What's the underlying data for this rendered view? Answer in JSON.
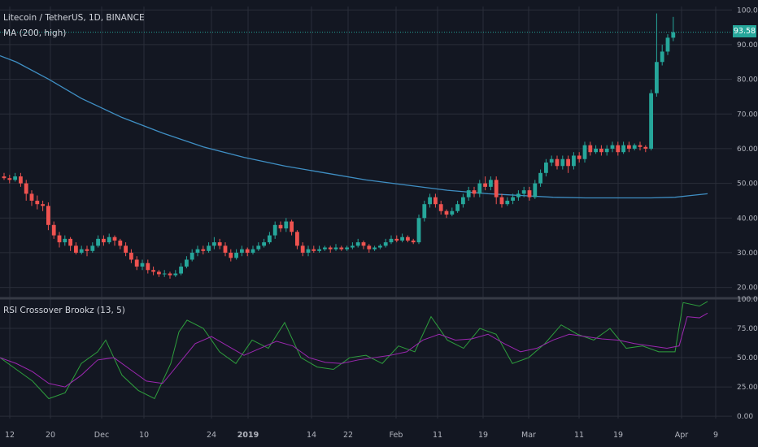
{
  "header": {
    "symbol": "Litecoin / TetherUS, 1D, BINANCE",
    "ma_label": "MA (200, high)",
    "rsi_label": "RSI Crossover Brookz (13, 5)"
  },
  "last_price": "93.58",
  "colors": {
    "background": "#131722",
    "grid": "#2a2e39",
    "up": "#26a69a",
    "down": "#ef5350",
    "ma": "#3f8fc4",
    "rsi_fast": "#2e9e3d",
    "rsi_slow": "#9c27b0",
    "axis_text": "#b2b5be"
  },
  "chart_data": [
    {
      "type": "candlestick",
      "title": "Litecoin / TetherUS, 1D, BINANCE",
      "y_ticks": [
        "100.00",
        "90.00",
        "80.00",
        "70.00",
        "60.00",
        "50.00",
        "40.00",
        "30.00",
        "20.00"
      ],
      "ylim": [
        18.5,
        101
      ],
      "x_ticks": [
        "12",
        "20",
        "Dec",
        "10",
        "24",
        "2019",
        "14",
        "22",
        "Feb",
        "11",
        "19",
        "Mar",
        "11",
        "19",
        "Apr",
        "9"
      ],
      "price_line": 93.58,
      "ma_series": {
        "name": "MA (200, high)",
        "points": [
          [
            0,
            86.8
          ],
          [
            20,
            85.0
          ],
          [
            60,
            80.0
          ],
          [
            100,
            74.5
          ],
          [
            150,
            69.0
          ],
          [
            200,
            64.5
          ],
          [
            250,
            60.5
          ],
          [
            300,
            57.5
          ],
          [
            350,
            55.0
          ],
          [
            400,
            53.0
          ],
          [
            450,
            51.0
          ],
          [
            500,
            49.5
          ],
          [
            550,
            48.0
          ],
          [
            600,
            47.0
          ],
          [
            640,
            46.5
          ],
          [
            680,
            46.0
          ],
          [
            720,
            45.8
          ],
          [
            760,
            45.8
          ],
          [
            800,
            45.8
          ],
          [
            830,
            46.0
          ],
          [
            850,
            46.5
          ],
          [
            870,
            47.0
          ]
        ]
      },
      "candles": [
        [
          52,
          51.5,
          53,
          51
        ],
        [
          51.5,
          51,
          52.5,
          50
        ],
        [
          51,
          52,
          53,
          50.5
        ],
        [
          52,
          50,
          53,
          49
        ],
        [
          50,
          47,
          51,
          45
        ],
        [
          47,
          45,
          48,
          43.5
        ],
        [
          45,
          44,
          46.5,
          42.5
        ],
        [
          44,
          43.5,
          45,
          42
        ],
        [
          43.5,
          38,
          44.5,
          36.5
        ],
        [
          38,
          35,
          39,
          34
        ],
        [
          35,
          33,
          36,
          31.5
        ],
        [
          33,
          34,
          35,
          32
        ],
        [
          34,
          32,
          34.5,
          30.5
        ],
        [
          32,
          30,
          33,
          29.5
        ],
        [
          30,
          31,
          32,
          29.5
        ],
        [
          31,
          30.5,
          32,
          29
        ],
        [
          30.5,
          32,
          33,
          30
        ],
        [
          32,
          34,
          35,
          31.5
        ],
        [
          34,
          33,
          35,
          32
        ],
        [
          33,
          34.5,
          35.5,
          32.5
        ],
        [
          34.5,
          33.5,
          35,
          32
        ],
        [
          33.5,
          32,
          34,
          31
        ],
        [
          32,
          30,
          33,
          29
        ],
        [
          30,
          28,
          31,
          27
        ],
        [
          28,
          26,
          29,
          25
        ],
        [
          26,
          27,
          28,
          25
        ],
        [
          27,
          25,
          28,
          24
        ],
        [
          25,
          24.5,
          26,
          23.5
        ],
        [
          24.5,
          23.8,
          25,
          23
        ],
        [
          23.8,
          24,
          25,
          23
        ],
        [
          24,
          23.5,
          24.5,
          22.5
        ],
        [
          23.5,
          24,
          25,
          23
        ],
        [
          24,
          26,
          27,
          23.5
        ],
        [
          26,
          28,
          29,
          25.5
        ],
        [
          28,
          30,
          31,
          27.5
        ],
        [
          30,
          31,
          32,
          29
        ],
        [
          31,
          30.5,
          32,
          29.5
        ],
        [
          30.5,
          32,
          33,
          30
        ],
        [
          32,
          33,
          34.5,
          31
        ],
        [
          33,
          32,
          34,
          31
        ],
        [
          32,
          30,
          33,
          29
        ],
        [
          30,
          28.5,
          31,
          27.5
        ],
        [
          28.5,
          30,
          31,
          28
        ],
        [
          30,
          31,
          32,
          29
        ],
        [
          31,
          30,
          31.5,
          29
        ],
        [
          30,
          31,
          32,
          29.5
        ],
        [
          31,
          32,
          33,
          30.5
        ],
        [
          32,
          33,
          34,
          31.5
        ],
        [
          33,
          35,
          36,
          32.5
        ],
        [
          35,
          38,
          39,
          34
        ],
        [
          38,
          37,
          39,
          36
        ],
        [
          37,
          39,
          40,
          36
        ],
        [
          39,
          36,
          39.5,
          35
        ],
        [
          36,
          32,
          36.5,
          31
        ],
        [
          32,
          30,
          33,
          29
        ],
        [
          30,
          31,
          32,
          29
        ],
        [
          31,
          30.5,
          32,
          30
        ],
        [
          30.5,
          31,
          32,
          30
        ],
        [
          31,
          31.5,
          32,
          30.5
        ],
        [
          31.5,
          31,
          32,
          30
        ],
        [
          31,
          31.5,
          32.5,
          30.5
        ],
        [
          31.5,
          31,
          32,
          30.5
        ],
        [
          31,
          31.5,
          32,
          30.5
        ],
        [
          31.5,
          32,
          33,
          31
        ],
        [
          32,
          33,
          34,
          31.5
        ],
        [
          33,
          32,
          33.5,
          31
        ],
        [
          32,
          31,
          32.5,
          30
        ],
        [
          31,
          31.5,
          32,
          30.5
        ],
        [
          31.5,
          32,
          32.5,
          31
        ],
        [
          32,
          33,
          34,
          31.5
        ],
        [
          33,
          34,
          35,
          32.5
        ],
        [
          34,
          33.5,
          35,
          33
        ],
        [
          33.5,
          34.5,
          35.5,
          33
        ],
        [
          34.5,
          33.5,
          35,
          33
        ],
        [
          33.5,
          33,
          34,
          32.5
        ],
        [
          33,
          40,
          41,
          32.5
        ],
        [
          40,
          44,
          45,
          39
        ],
        [
          44,
          46,
          47,
          43
        ],
        [
          46,
          44,
          47,
          43
        ],
        [
          44,
          42,
          45,
          41
        ],
        [
          42,
          41,
          42.5,
          40
        ],
        [
          41,
          42,
          43,
          40.5
        ],
        [
          42,
          44,
          45,
          41.5
        ],
        [
          44,
          46,
          47,
          43
        ],
        [
          46,
          48,
          49,
          45
        ],
        [
          48,
          47,
          49,
          46
        ],
        [
          47,
          50,
          51,
          46
        ],
        [
          50,
          49,
          52,
          48
        ],
        [
          49,
          51,
          52,
          48
        ],
        [
          51,
          46,
          52,
          44
        ],
        [
          46,
          44,
          47,
          43
        ],
        [
          44,
          45,
          46,
          43.5
        ],
        [
          45,
          46,
          47,
          44
        ],
        [
          46,
          47,
          48,
          45
        ],
        [
          47,
          48,
          49,
          46
        ],
        [
          48,
          46,
          49,
          45
        ],
        [
          46,
          50,
          51,
          45.5
        ],
        [
          50,
          53,
          54,
          49
        ],
        [
          53,
          56,
          57,
          52
        ],
        [
          56,
          57,
          58,
          55
        ],
        [
          57,
          55,
          58,
          54
        ],
        [
          55,
          57,
          58,
          54
        ],
        [
          57,
          55,
          58,
          53
        ],
        [
          55,
          58,
          59,
          54
        ],
        [
          58,
          57,
          59,
          56
        ],
        [
          57,
          61,
          62,
          56
        ],
        [
          61,
          59,
          62,
          58
        ],
        [
          59,
          60,
          61,
          58.5
        ],
        [
          60,
          59,
          61,
          58
        ],
        [
          59,
          60,
          61,
          58
        ],
        [
          60,
          61,
          62,
          59
        ],
        [
          61,
          59,
          62,
          58
        ],
        [
          59,
          61,
          62,
          58.5
        ],
        [
          61,
          60,
          62,
          59
        ],
        [
          60,
          61,
          61.5,
          59.5
        ],
        [
          61,
          60.5,
          62,
          59.5
        ],
        [
          60.5,
          60,
          61,
          59
        ],
        [
          60,
          76,
          77,
          59.5
        ],
        [
          76,
          85,
          99,
          75
        ],
        [
          85,
          88,
          90,
          84
        ],
        [
          88,
          92,
          93,
          87
        ],
        [
          92,
          93.58,
          98,
          91
        ]
      ]
    },
    {
      "type": "line",
      "title": "RSI Crossover Brookz (13, 5)",
      "y_ticks": [
        "100.00",
        "75.00",
        "50.00",
        "25.00",
        "0.00"
      ],
      "ylim": [
        -2,
        100
      ],
      "series": [
        {
          "name": "fast",
          "color": "#2e9e3d",
          "points": [
            [
              0,
              50
            ],
            [
              20,
              40
            ],
            [
              40,
              30
            ],
            [
              60,
              15
            ],
            [
              80,
              20
            ],
            [
              100,
              45
            ],
            [
              120,
              55
            ],
            [
              130,
              65
            ],
            [
              150,
              35
            ],
            [
              170,
              22
            ],
            [
              190,
              15
            ],
            [
              210,
              45
            ],
            [
              220,
              72
            ],
            [
              230,
              82
            ],
            [
              250,
              75
            ],
            [
              270,
              55
            ],
            [
              290,
              45
            ],
            [
              310,
              65
            ],
            [
              330,
              58
            ],
            [
              350,
              80
            ],
            [
              370,
              50
            ],
            [
              390,
              42
            ],
            [
              410,
              40
            ],
            [
              430,
              50
            ],
            [
              450,
              52
            ],
            [
              470,
              45
            ],
            [
              490,
              60
            ],
            [
              510,
              55
            ],
            [
              530,
              85
            ],
            [
              550,
              65
            ],
            [
              570,
              58
            ],
            [
              590,
              75
            ],
            [
              610,
              70
            ],
            [
              630,
              45
            ],
            [
              650,
              50
            ],
            [
              670,
              62
            ],
            [
              690,
              78
            ],
            [
              710,
              70
            ],
            [
              730,
              65
            ],
            [
              750,
              75
            ],
            [
              770,
              58
            ],
            [
              790,
              60
            ],
            [
              810,
              55
            ],
            [
              830,
              55
            ],
            [
              840,
              97
            ],
            [
              860,
              94
            ],
            [
              870,
              98
            ]
          ]
        },
        {
          "name": "slow",
          "color": "#9c27b0",
          "points": [
            [
              0,
              50
            ],
            [
              20,
              45
            ],
            [
              40,
              38
            ],
            [
              60,
              28
            ],
            [
              80,
              25
            ],
            [
              100,
              35
            ],
            [
              120,
              48
            ],
            [
              140,
              50
            ],
            [
              160,
              40
            ],
            [
              180,
              30
            ],
            [
              200,
              28
            ],
            [
              220,
              45
            ],
            [
              240,
              62
            ],
            [
              260,
              68
            ],
            [
              280,
              60
            ],
            [
              300,
              52
            ],
            [
              320,
              58
            ],
            [
              340,
              64
            ],
            [
              360,
              60
            ],
            [
              380,
              50
            ],
            [
              400,
              46
            ],
            [
              420,
              45
            ],
            [
              440,
              48
            ],
            [
              460,
              50
            ],
            [
              480,
              52
            ],
            [
              500,
              55
            ],
            [
              520,
              65
            ],
            [
              540,
              70
            ],
            [
              560,
              65
            ],
            [
              580,
              66
            ],
            [
              600,
              70
            ],
            [
              620,
              62
            ],
            [
              640,
              55
            ],
            [
              660,
              58
            ],
            [
              680,
              65
            ],
            [
              700,
              70
            ],
            [
              720,
              68
            ],
            [
              740,
              66
            ],
            [
              760,
              65
            ],
            [
              780,
              62
            ],
            [
              800,
              60
            ],
            [
              820,
              58
            ],
            [
              835,
              60
            ],
            [
              845,
              85
            ],
            [
              860,
              84
            ],
            [
              870,
              88
            ]
          ]
        }
      ]
    }
  ]
}
